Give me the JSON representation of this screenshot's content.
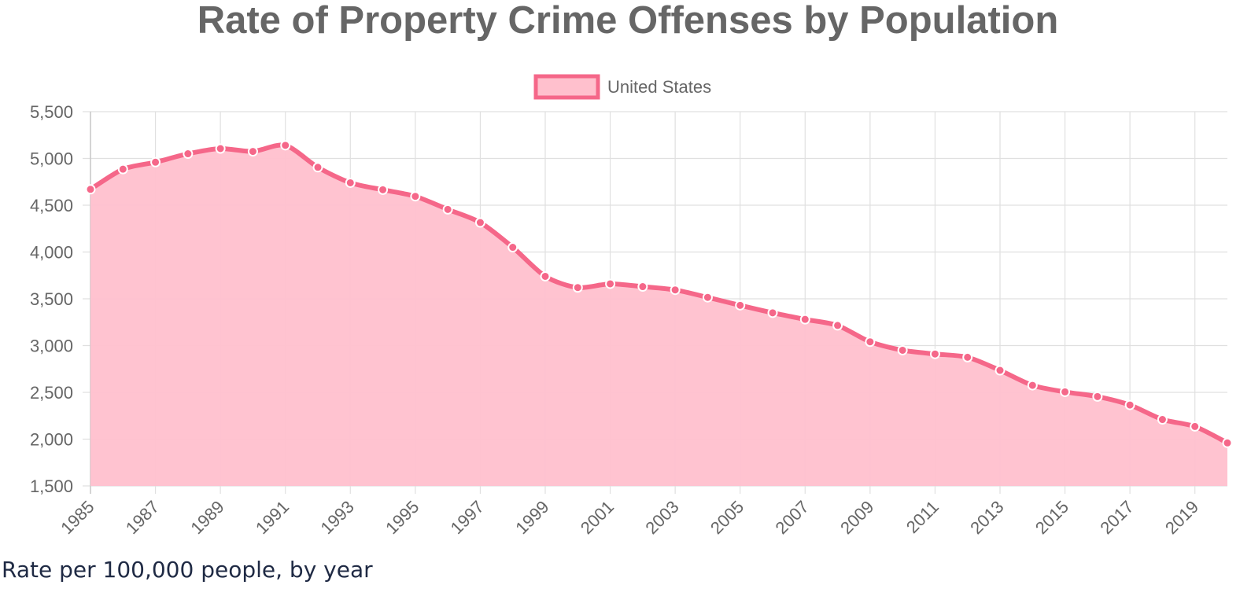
{
  "chart_data": {
    "type": "area",
    "title": "Rate of Property Crime Offenses by Population",
    "caption": "Rate per 100,000 people, by year",
    "xlabel": "",
    "ylabel": "",
    "x": [
      1985,
      1986,
      1987,
      1988,
      1989,
      1990,
      1991,
      1992,
      1993,
      1994,
      1995,
      1996,
      1997,
      1998,
      1999,
      2000,
      2001,
      2002,
      2003,
      2004,
      2005,
      2006,
      2007,
      2008,
      2009,
      2010,
      2011,
      2012,
      2013,
      2014,
      2015,
      2016,
      2017,
      2018,
      2019,
      2020
    ],
    "x_tick_labels": [
      "1985",
      "1987",
      "1989",
      "1991",
      "1993",
      "1995",
      "1997",
      "1999",
      "2001",
      "2003",
      "2005",
      "2007",
      "2009",
      "2011",
      "2013",
      "2015",
      "2017",
      "2019"
    ],
    "y_tick_labels": [
      "5,500",
      "5,000",
      "4,500",
      "4,000",
      "3,500",
      "3,000",
      "2,500",
      "2,000",
      "1,500"
    ],
    "ylim": [
      1500,
      5500
    ],
    "y_ticks": [
      5500,
      5000,
      4500,
      4000,
      3500,
      3000,
      2500,
      2000,
      1500
    ],
    "grid": true,
    "legend_position": "top-center",
    "series": [
      {
        "name": "United States",
        "line_color": "#f56789",
        "fill_color": "#ffc0cd",
        "values": [
          4670,
          4885,
          4960,
          5050,
          5105,
          5075,
          5140,
          4905,
          4740,
          4665,
          4595,
          4455,
          4315,
          4050,
          3740,
          3620,
          3660,
          3630,
          3595,
          3515,
          3430,
          3350,
          3280,
          3215,
          3040,
          2950,
          2910,
          2875,
          2735,
          2575,
          2505,
          2455,
          2365,
          2210,
          2135,
          1960
        ]
      }
    ]
  }
}
